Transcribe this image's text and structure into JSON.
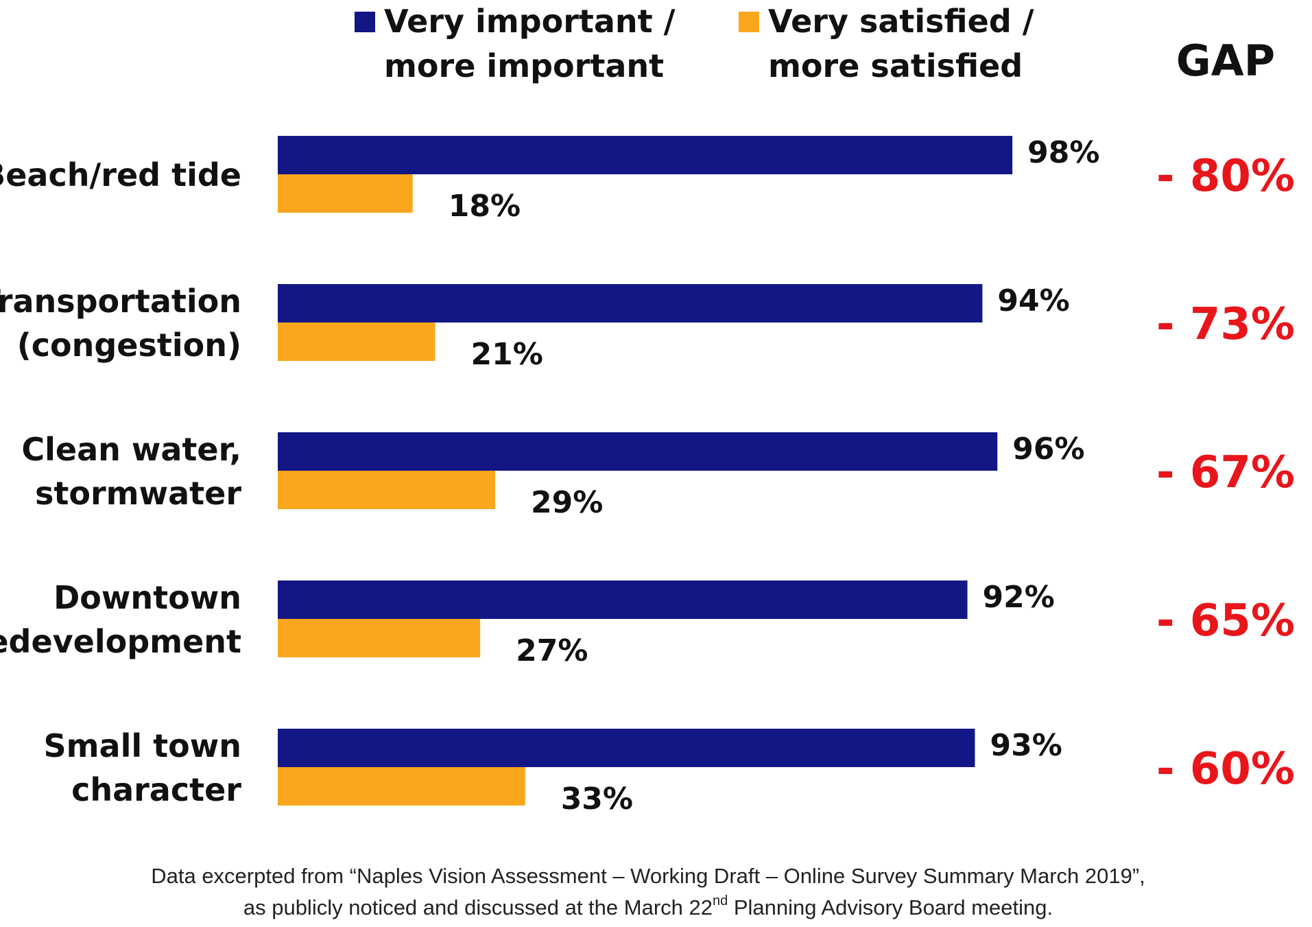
{
  "colors": {
    "important": "#131685",
    "satisfied": "#fba61d",
    "gap": "#e8161b",
    "text": "#111111"
  },
  "legend": {
    "important": [
      "Very important /",
      "more important"
    ],
    "satisfied": [
      "Very satisfied /",
      "more satisfied"
    ]
  },
  "gap_header": "GAP",
  "chart_data": {
    "type": "bar",
    "orientation": "horizontal",
    "categories": [
      [
        "Beach/red tide"
      ],
      [
        "Transportation",
        "(congestion)"
      ],
      [
        "Clean water,",
        "stormwater"
      ],
      [
        "Downtown",
        "redevelopment"
      ],
      [
        "Small town",
        "character"
      ]
    ],
    "series": [
      {
        "name": "Very important / more important",
        "values": [
          98,
          94,
          96,
          92,
          93
        ]
      },
      {
        "name": "Very satisfied / more satisfied",
        "values": [
          18,
          21,
          29,
          27,
          33
        ]
      }
    ],
    "value_labels": {
      "important": [
        "98%",
        "94%",
        "96%",
        "92%",
        "93%"
      ],
      "satisfied": [
        "18%",
        "21%",
        "29%",
        "27%",
        "33%"
      ]
    },
    "gap": {
      "values": [
        -80,
        -73,
        -67,
        -65,
        -60
      ],
      "labels": [
        "- 80%",
        "- 73%",
        "- 67%",
        "- 65%",
        "- 60%"
      ]
    },
    "xlim": [
      0,
      100
    ],
    "grid": false,
    "legend_position": "top"
  },
  "footnote": {
    "line1": "Data excerpted from “Naples Vision Assessment – Working Draft – Online Survey Summary March 2019”,",
    "line2_before": "as publicly noticed and discussed at the March 22",
    "line2_sup": "nd",
    "line2_after": " Planning Advisory Board meeting."
  }
}
